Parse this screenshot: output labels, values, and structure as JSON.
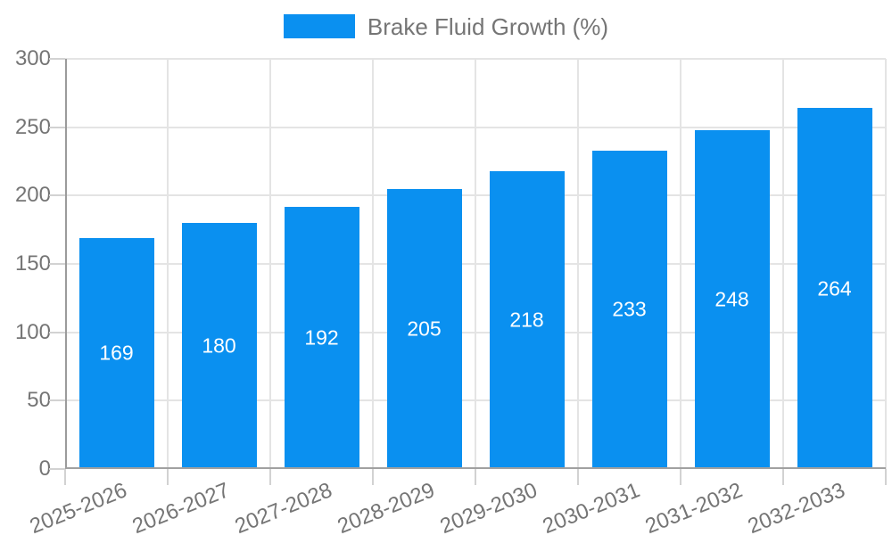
{
  "chart_data": {
    "type": "bar",
    "title": "Brake Fluid Growth (%)",
    "legend": {
      "position": "top",
      "label": "Brake Fluid Growth (%)"
    },
    "categories": [
      "2025-2026",
      "2026-2027",
      "2027-2028",
      "2028-2029",
      "2029-2030",
      "2030-2031",
      "2031-2032",
      "2032-2033"
    ],
    "values": [
      169,
      180,
      192,
      205,
      218,
      233,
      248,
      264
    ],
    "xlabel": "",
    "ylabel": "",
    "ylim": [
      0,
      300
    ],
    "yticks": [
      0,
      50,
      100,
      150,
      200,
      250,
      300
    ],
    "grid": true,
    "bar_color": "#0A90F0",
    "value_label_color": "#FFFFFF",
    "axis_text_color": "#757575"
  }
}
